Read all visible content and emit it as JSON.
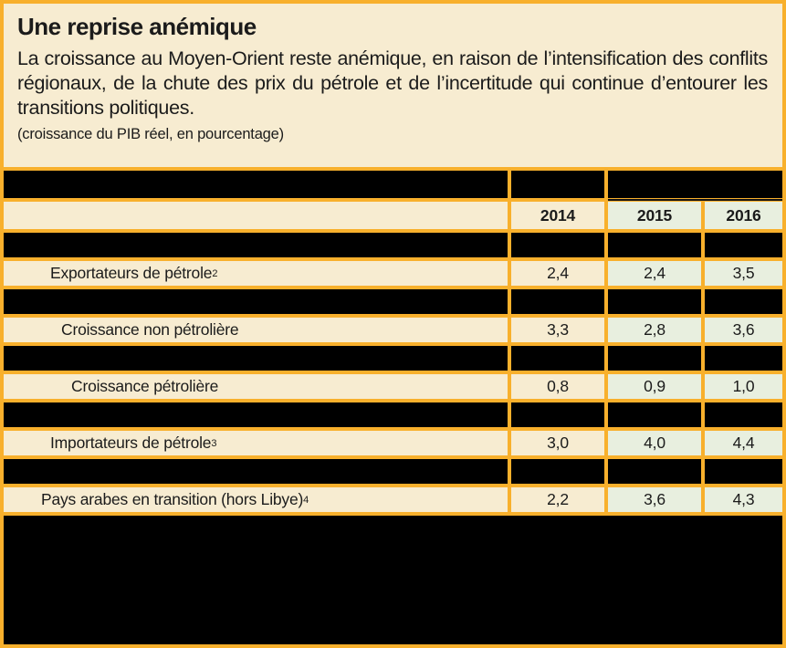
{
  "figure": {
    "title": "Une reprise anémique",
    "subtitle": "La croissance au Moyen-Orient reste anémique, en raison de l’intensification des conflits régionaux, de la chute des prix du pétrole et de l’incertitude qui continue d’entourer les transitions politiques.",
    "unit_note": "(croissance du PIB réel, en pourcentage)"
  },
  "colors": {
    "background": "#f7ecd1",
    "grid": "#f8b02c",
    "green_cell": "#e8efdf",
    "redacted": "#000000",
    "text": "#1b1b1b"
  },
  "table": {
    "year_columns": [
      "2014",
      "2015",
      "2016"
    ],
    "rows": [
      {
        "label": "Exportateurs de pétrole",
        "sup": "2",
        "values": [
          "2,4",
          "2,4",
          "3,5"
        ]
      },
      {
        "label": "Croissance non pétrolière",
        "sup": "",
        "values": [
          "3,3",
          "2,8",
          "3,6"
        ]
      },
      {
        "label": "Croissance pétrolière",
        "sup": "",
        "values": [
          "0,8",
          "0,9",
          "1,0"
        ]
      },
      {
        "label": "Importateurs de pétrole",
        "sup": "3",
        "values": [
          "3,0",
          "4,0",
          "4,4"
        ]
      },
      {
        "label": "Pays arabes en transition (hors Libye)",
        "sup": "4",
        "values": [
          "2,2",
          "3,6",
          "4,3"
        ]
      }
    ]
  }
}
